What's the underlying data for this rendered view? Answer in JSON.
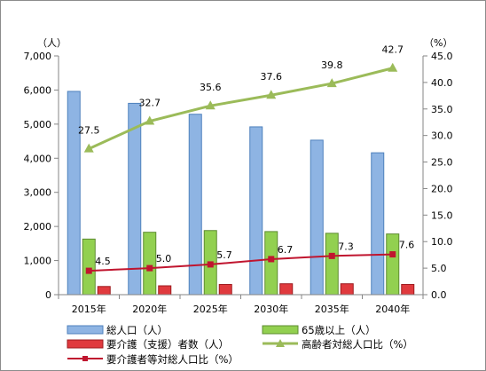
{
  "chart_data": {
    "type": "bar",
    "categories": [
      "2015年",
      "2020年",
      "2025年",
      "2030年",
      "2035年",
      "2040年"
    ],
    "y_unit_label": "（人）",
    "y2_unit_label": "（%）",
    "ylim": [
      0,
      7000
    ],
    "y2lim": [
      0,
      45
    ],
    "yticks": [
      "0",
      "1,000",
      "2,000",
      "3,000",
      "4,000",
      "5,000",
      "6,000",
      "7,000"
    ],
    "y2ticks": [
      "0.0",
      "5.0",
      "10.0",
      "15.0",
      "20.0",
      "25.0",
      "30.0",
      "35.0",
      "40.0",
      "45.0"
    ],
    "grid": false,
    "legend_position": "bottom",
    "series": [
      {
        "name": "総人口（人）",
        "kind": "bar",
        "axis": "left",
        "color": "#8EB4E3",
        "values": [
          5960,
          5610,
          5290,
          4920,
          4530,
          4160
        ]
      },
      {
        "name": "65歳以上（人）",
        "kind": "bar",
        "axis": "left",
        "color": "#92D050",
        "values": [
          1630,
          1830,
          1880,
          1850,
          1800,
          1780
        ]
      },
      {
        "name": "要介護（支援）者数（人）",
        "kind": "bar",
        "axis": "left",
        "color": "#E03A3E",
        "values": [
          240,
          260,
          300,
          320,
          320,
          300
        ]
      },
      {
        "name": "高齢者対総人口比（%）",
        "kind": "line",
        "axis": "right",
        "color": "#9BBB59",
        "values": [
          27.5,
          32.7,
          35.6,
          37.6,
          39.8,
          42.7
        ],
        "labels": [
          "27.5",
          "32.7",
          "35.6",
          "37.6",
          "39.8",
          "42.7"
        ]
      },
      {
        "name": "要介護者等対総人口比（%）",
        "kind": "line",
        "axis": "right",
        "color": "#C0152F",
        "values": [
          4.5,
          5.0,
          5.7,
          6.7,
          7.3,
          7.6
        ],
        "labels": [
          "4.5",
          "5.0",
          "5.7",
          "6.7",
          "7.3",
          "7.6"
        ]
      }
    ]
  }
}
